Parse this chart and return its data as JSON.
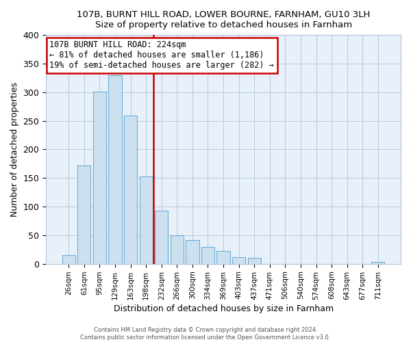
{
  "title": "107B, BURNT HILL ROAD, LOWER BOURNE, FARNHAM, GU10 3LH",
  "subtitle": "Size of property relative to detached houses in Farnham",
  "xlabel": "Distribution of detached houses by size in Farnham",
  "ylabel": "Number of detached properties",
  "bar_color": "#cce0f0",
  "bar_edge_color": "#6aaed6",
  "categories": [
    "26sqm",
    "61sqm",
    "95sqm",
    "129sqm",
    "163sqm",
    "198sqm",
    "232sqm",
    "266sqm",
    "300sqm",
    "334sqm",
    "369sqm",
    "403sqm",
    "437sqm",
    "471sqm",
    "506sqm",
    "540sqm",
    "574sqm",
    "608sqm",
    "643sqm",
    "677sqm",
    "711sqm"
  ],
  "values": [
    15,
    172,
    301,
    330,
    259,
    153,
    93,
    50,
    42,
    29,
    22,
    12,
    10,
    0,
    0,
    0,
    0,
    0,
    0,
    0,
    3
  ],
  "ylim": [
    0,
    400
  ],
  "yticks": [
    0,
    50,
    100,
    150,
    200,
    250,
    300,
    350,
    400
  ],
  "vline_x_index": 6,
  "vline_color": "#cc0000",
  "annotation_text": "107B BURNT HILL ROAD: 224sqm\n← 81% of detached houses are smaller (1,186)\n19% of semi-detached houses are larger (282) →",
  "footer1": "Contains HM Land Registry data © Crown copyright and database right 2024.",
  "footer2": "Contains public sector information licensed under the Open Government Licence v3.0.",
  "bg_color": "#ffffff",
  "plot_bg_color": "#e8f0fa",
  "grid_color": "#b0c4d8"
}
